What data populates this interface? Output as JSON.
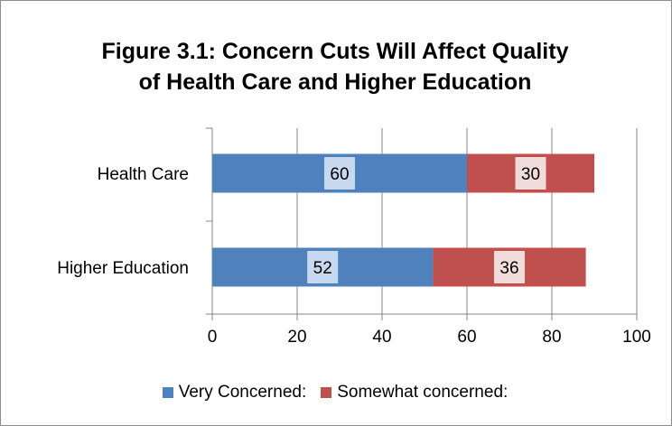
{
  "chart_data": {
    "type": "bar",
    "orientation": "horizontal",
    "stacked": true,
    "title": "Figure 3.1: Concern Cuts Will Affect Quality of Health Care and Higher Education",
    "title_lines": [
      "Figure 3.1: Concern Cuts Will Affect Quality",
      "of Health Care and Higher Education"
    ],
    "categories": [
      "Health Care",
      "Higher Education"
    ],
    "series": [
      {
        "name": "Very Concerned:",
        "values": [
          60,
          52
        ],
        "color": "#4f81bd",
        "label_bg": "#c6d9f1"
      },
      {
        "name": "Somewhat concerned:",
        "values": [
          30,
          36
        ],
        "color": "#c0504d",
        "label_bg": "#f2dcdb"
      }
    ],
    "xlim": [
      0,
      100
    ],
    "xticks": [
      0,
      20,
      40,
      60,
      80,
      100
    ],
    "grid": true,
    "legend_position": "bottom"
  }
}
